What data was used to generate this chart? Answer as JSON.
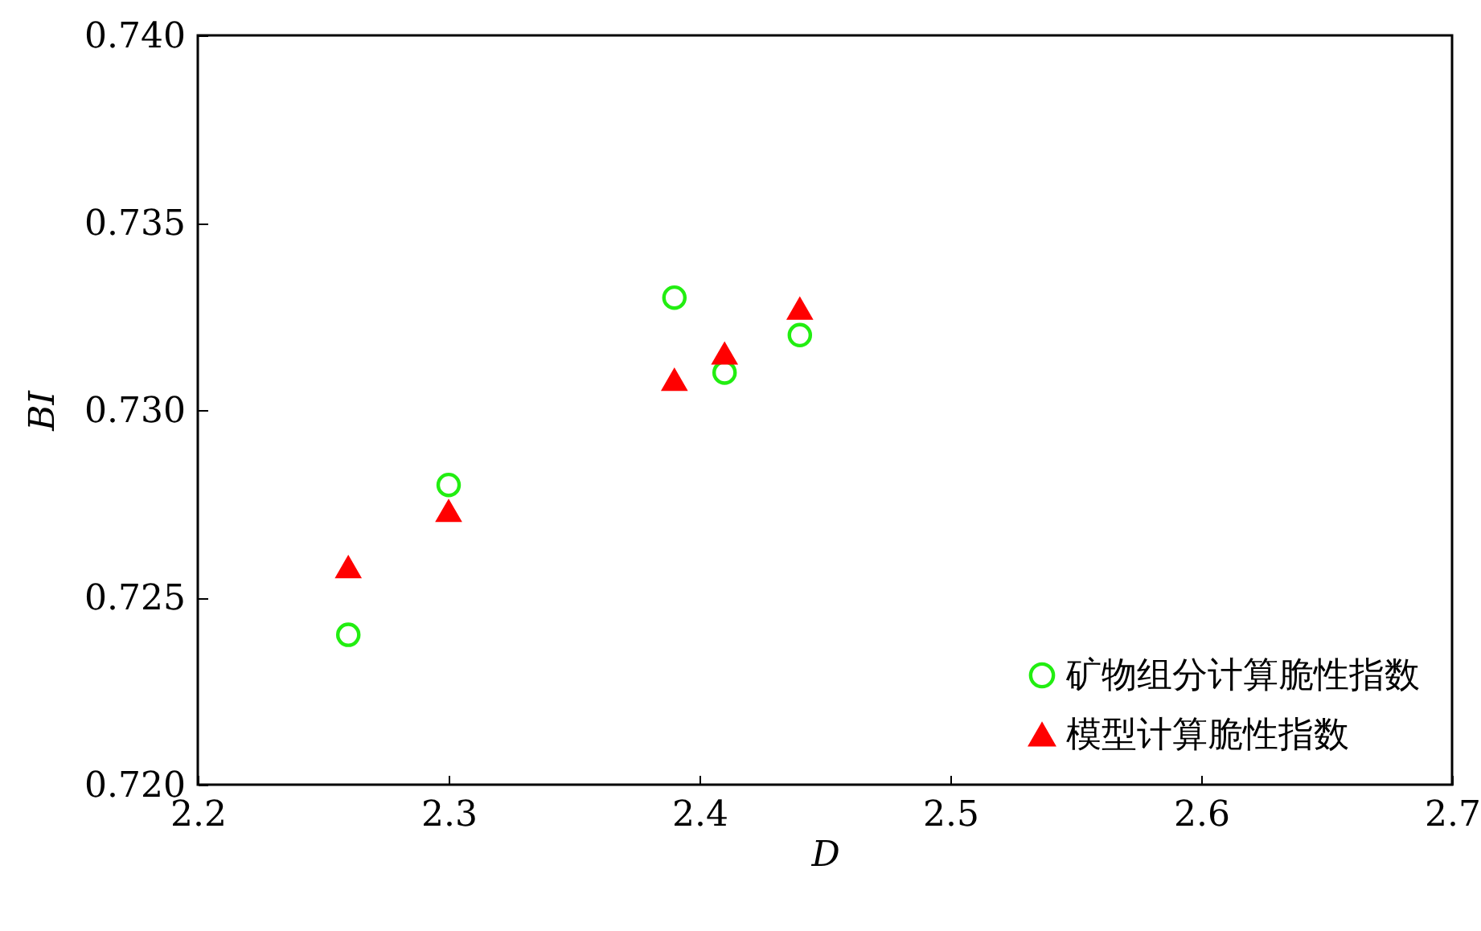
{
  "chart_data": {
    "type": "scatter",
    "xlabel": "D",
    "ylabel": "BI",
    "xlim": [
      2.2,
      2.7
    ],
    "xticks": [
      2.2,
      2.3,
      2.4,
      2.5,
      2.6,
      2.7
    ],
    "ylim": [
      0.72,
      0.74
    ],
    "yticks": [
      {
        "value": 0.72,
        "label": "0.720"
      },
      {
        "value": 0.725,
        "label": "0.725"
      },
      {
        "value": 0.73,
        "label": "0.730"
      },
      {
        "value": 0.735,
        "label": "0.735"
      },
      {
        "value": 0.74,
        "label": "0.740"
      }
    ],
    "legend": "bottom right",
    "grid": false,
    "series": [
      {
        "name": "矿物组分计算脆性指数",
        "color": "#22ee11",
        "marker": "circle",
        "x": [
          2.26,
          2.3,
          2.39,
          2.41,
          2.44
        ],
        "values": [
          0.724,
          0.728,
          0.733,
          0.731,
          0.732
        ]
      },
      {
        "name": "模型计算脆性指数",
        "color": "#ff0000",
        "marker": "triangle",
        "x": [
          2.26,
          2.3,
          2.39,
          2.41,
          2.44
        ],
        "values": [
          0.7258,
          0.7273,
          0.7308,
          0.7315,
          0.7327
        ]
      }
    ]
  }
}
